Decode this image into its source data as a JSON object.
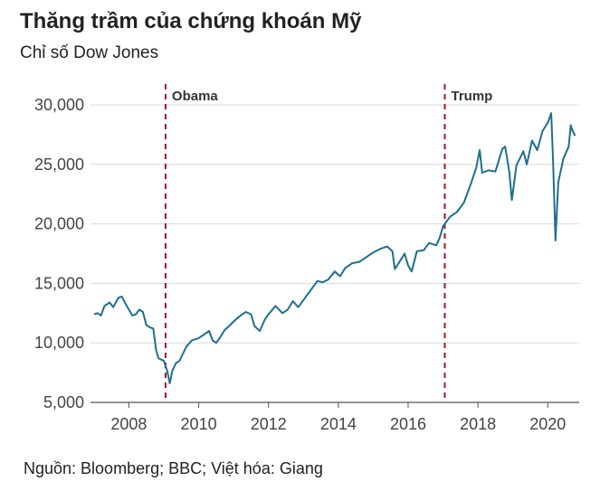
{
  "title": "Thăng trầm của chứng khoán Mỹ",
  "subtitle": "Chỉ số Dow Jones",
  "source": "Nguồn: Bloomberg; BBC; Việt hóa: Giang",
  "chart_data": {
    "type": "line",
    "title": "Thăng trầm của chứng khoán Mỹ",
    "subtitle": "Chỉ số Dow Jones",
    "xlabel": "",
    "ylabel": "",
    "xlim": [
      2006.9,
      2020.9
    ],
    "ylim": [
      5000,
      30000
    ],
    "x_ticks": [
      2008,
      2010,
      2012,
      2014,
      2016,
      2018,
      2020
    ],
    "y_ticks": [
      5000,
      10000,
      15000,
      20000,
      25000,
      30000
    ],
    "y_tick_labels": [
      "5,000",
      "10,000",
      "15,000",
      "20,000",
      "25,000",
      "30,000"
    ],
    "grid": "horizontal",
    "line_color": "#1d6f8f",
    "annotations": [
      {
        "label": "Obama",
        "x": 2009.05
      },
      {
        "label": "Trump",
        "x": 2017.05
      }
    ],
    "series": [
      {
        "points": [
          [
            2007.0,
            12400
          ],
          [
            2007.1,
            12500
          ],
          [
            2007.2,
            12300
          ],
          [
            2007.3,
            13100
          ],
          [
            2007.45,
            13400
          ],
          [
            2007.55,
            13000
          ],
          [
            2007.7,
            13800
          ],
          [
            2007.8,
            13900
          ],
          [
            2007.9,
            13300
          ],
          [
            2008.0,
            12800
          ],
          [
            2008.1,
            12300
          ],
          [
            2008.2,
            12400
          ],
          [
            2008.3,
            12800
          ],
          [
            2008.4,
            12600
          ],
          [
            2008.5,
            11500
          ],
          [
            2008.6,
            11300
          ],
          [
            2008.7,
            11200
          ],
          [
            2008.78,
            9400
          ],
          [
            2008.85,
            8700
          ],
          [
            2008.92,
            8600
          ],
          [
            2009.0,
            8500
          ],
          [
            2009.1,
            7600
          ],
          [
            2009.17,
            6600
          ],
          [
            2009.25,
            7700
          ],
          [
            2009.35,
            8300
          ],
          [
            2009.45,
            8500
          ],
          [
            2009.55,
            9100
          ],
          [
            2009.65,
            9700
          ],
          [
            2009.8,
            10200
          ],
          [
            2010.0,
            10400
          ],
          [
            2010.15,
            10700
          ],
          [
            2010.3,
            11000
          ],
          [
            2010.4,
            10200
          ],
          [
            2010.5,
            10000
          ],
          [
            2010.6,
            10400
          ],
          [
            2010.75,
            11100
          ],
          [
            2010.9,
            11500
          ],
          [
            2011.0,
            11800
          ],
          [
            2011.2,
            12300
          ],
          [
            2011.35,
            12600
          ],
          [
            2011.5,
            12400
          ],
          [
            2011.6,
            11400
          ],
          [
            2011.75,
            11000
          ],
          [
            2011.9,
            12000
          ],
          [
            2012.0,
            12400
          ],
          [
            2012.2,
            13100
          ],
          [
            2012.4,
            12500
          ],
          [
            2012.55,
            12800
          ],
          [
            2012.7,
            13500
          ],
          [
            2012.85,
            13000
          ],
          [
            2013.0,
            13600
          ],
          [
            2013.2,
            14400
          ],
          [
            2013.4,
            15200
          ],
          [
            2013.55,
            15100
          ],
          [
            2013.7,
            15300
          ],
          [
            2013.9,
            16000
          ],
          [
            2014.05,
            15600
          ],
          [
            2014.2,
            16300
          ],
          [
            2014.4,
            16700
          ],
          [
            2014.6,
            16800
          ],
          [
            2014.8,
            17200
          ],
          [
            2015.0,
            17600
          ],
          [
            2015.2,
            17900
          ],
          [
            2015.4,
            18100
          ],
          [
            2015.55,
            17700
          ],
          [
            2015.62,
            16200
          ],
          [
            2015.75,
            16800
          ],
          [
            2015.9,
            17500
          ],
          [
            2016.0,
            16500
          ],
          [
            2016.1,
            16000
          ],
          [
            2016.25,
            17700
          ],
          [
            2016.45,
            17800
          ],
          [
            2016.6,
            18400
          ],
          [
            2016.8,
            18200
          ],
          [
            2016.9,
            18800
          ],
          [
            2017.0,
            19800
          ],
          [
            2017.2,
            20600
          ],
          [
            2017.4,
            21000
          ],
          [
            2017.6,
            21800
          ],
          [
            2017.8,
            23400
          ],
          [
            2017.95,
            24700
          ],
          [
            2018.05,
            26200
          ],
          [
            2018.12,
            24300
          ],
          [
            2018.3,
            24500
          ],
          [
            2018.5,
            24400
          ],
          [
            2018.7,
            26300
          ],
          [
            2018.78,
            26500
          ],
          [
            2018.9,
            24300
          ],
          [
            2018.97,
            22000
          ],
          [
            2019.1,
            24900
          ],
          [
            2019.3,
            26100
          ],
          [
            2019.4,
            25000
          ],
          [
            2019.55,
            27000
          ],
          [
            2019.7,
            26200
          ],
          [
            2019.85,
            27800
          ],
          [
            2020.0,
            28500
          ],
          [
            2020.1,
            29300
          ],
          [
            2020.15,
            25400
          ],
          [
            2020.22,
            18600
          ],
          [
            2020.3,
            23500
          ],
          [
            2020.45,
            25500
          ],
          [
            2020.6,
            26500
          ],
          [
            2020.66,
            28300
          ],
          [
            2020.7,
            27900
          ],
          [
            2020.78,
            27400
          ]
        ]
      }
    ]
  }
}
